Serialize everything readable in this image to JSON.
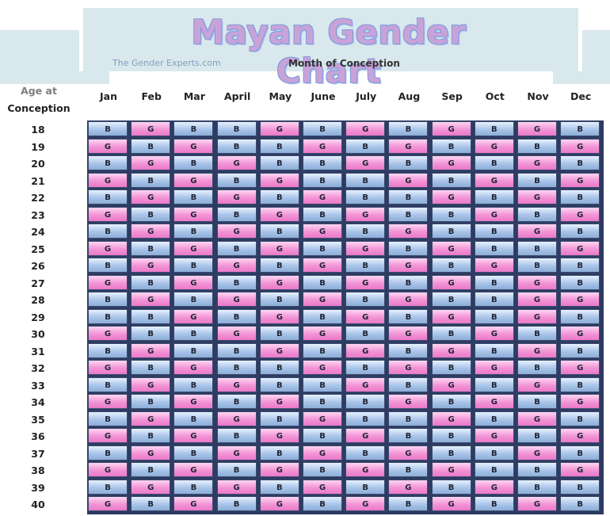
{
  "chart_data": {
    "type": "table",
    "title": "Mayan Gender Chart",
    "brand": "The Gender Experts.com",
    "subtitle": "Month of Conception",
    "row_header": [
      "Age at",
      "Conception"
    ],
    "months": [
      "Jan",
      "Feb",
      "Mar",
      "April",
      "May",
      "June",
      "July",
      "Aug",
      "Sep",
      "Oct",
      "Nov",
      "Dec"
    ],
    "ages": [
      "18",
      "19",
      "20",
      "21",
      "22",
      "23",
      "24",
      "25",
      "26",
      "27",
      "28",
      "29",
      "30",
      "31",
      "32",
      "33",
      "34",
      "35",
      "36",
      "37",
      "38",
      "39",
      "40"
    ],
    "rows": [
      [
        "B",
        "G",
        "B",
        "B",
        "G",
        "B",
        "G",
        "B",
        "G",
        "B",
        "G",
        "B"
      ],
      [
        "G",
        "B",
        "G",
        "B",
        "B",
        "G",
        "B",
        "G",
        "B",
        "G",
        "B",
        "G"
      ],
      [
        "B",
        "G",
        "B",
        "G",
        "B",
        "B",
        "G",
        "B",
        "G",
        "B",
        "G",
        "B"
      ],
      [
        "G",
        "B",
        "G",
        "B",
        "G",
        "B",
        "B",
        "G",
        "B",
        "G",
        "B",
        "G"
      ],
      [
        "B",
        "G",
        "B",
        "G",
        "B",
        "G",
        "B",
        "B",
        "G",
        "B",
        "G",
        "B"
      ],
      [
        "G",
        "B",
        "G",
        "B",
        "G",
        "B",
        "G",
        "B",
        "B",
        "G",
        "B",
        "G"
      ],
      [
        "B",
        "G",
        "B",
        "G",
        "B",
        "G",
        "B",
        "G",
        "B",
        "B",
        "G",
        "B"
      ],
      [
        "G",
        "B",
        "G",
        "B",
        "G",
        "B",
        "G",
        "B",
        "G",
        "B",
        "B",
        "G"
      ],
      [
        "B",
        "G",
        "B",
        "G",
        "B",
        "G",
        "B",
        "G",
        "B",
        "G",
        "B",
        "B"
      ],
      [
        "G",
        "B",
        "G",
        "B",
        "G",
        "B",
        "G",
        "B",
        "G",
        "B",
        "G",
        "B"
      ],
      [
        "B",
        "G",
        "B",
        "G",
        "B",
        "G",
        "B",
        "G",
        "B",
        "B",
        "G",
        "G"
      ],
      [
        "B",
        "B",
        "G",
        "B",
        "G",
        "B",
        "G",
        "B",
        "G",
        "B",
        "G",
        "B"
      ],
      [
        "G",
        "B",
        "B",
        "G",
        "B",
        "G",
        "B",
        "G",
        "B",
        "G",
        "B",
        "G"
      ],
      [
        "B",
        "G",
        "B",
        "B",
        "G",
        "B",
        "G",
        "B",
        "G",
        "B",
        "G",
        "B"
      ],
      [
        "G",
        "B",
        "G",
        "B",
        "B",
        "G",
        "B",
        "G",
        "B",
        "G",
        "B",
        "G"
      ],
      [
        "B",
        "G",
        "B",
        "G",
        "B",
        "B",
        "G",
        "B",
        "G",
        "B",
        "G",
        "B"
      ],
      [
        "G",
        "B",
        "G",
        "B",
        "G",
        "B",
        "B",
        "G",
        "B",
        "G",
        "B",
        "G"
      ],
      [
        "B",
        "G",
        "B",
        "G",
        "B",
        "G",
        "B",
        "B",
        "G",
        "B",
        "G",
        "B"
      ],
      [
        "G",
        "B",
        "G",
        "B",
        "G",
        "B",
        "G",
        "B",
        "B",
        "G",
        "B",
        "G"
      ],
      [
        "B",
        "G",
        "B",
        "G",
        "B",
        "G",
        "B",
        "G",
        "B",
        "B",
        "G",
        "B"
      ],
      [
        "G",
        "B",
        "G",
        "B",
        "G",
        "B",
        "G",
        "B",
        "G",
        "B",
        "B",
        "G"
      ],
      [
        "B",
        "G",
        "B",
        "G",
        "B",
        "G",
        "B",
        "G",
        "B",
        "G",
        "B",
        "B"
      ],
      [
        "G",
        "B",
        "G",
        "B",
        "G",
        "B",
        "G",
        "B",
        "G",
        "B",
        "G",
        "B"
      ]
    ],
    "colors": {
      "B": "#a9c4e8",
      "G": "#f294d6"
    }
  }
}
